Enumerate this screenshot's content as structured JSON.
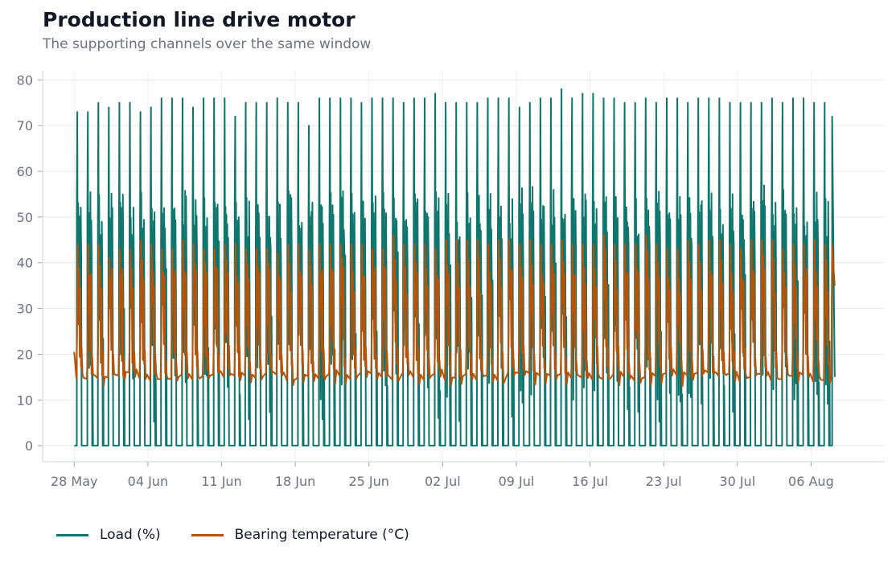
{
  "header": {
    "title": "Production line drive motor",
    "subtitle": "The supporting channels over the same window"
  },
  "chart_data": {
    "type": "line",
    "title": "Production line drive motor",
    "subtitle": "The supporting channels over the same window",
    "xlabel": "",
    "ylabel": "",
    "x_range": [
      "2024-05-25",
      "2024-08-13"
    ],
    "data_x_range": [
      "2024-05-28",
      "2024-08-08"
    ],
    "ylim": [
      -3.5,
      82
    ],
    "y_ticks": [
      0,
      10,
      20,
      30,
      40,
      50,
      60,
      70,
      80
    ],
    "x_tick_labels": [
      "28 May",
      "04 Jun",
      "11 Jun",
      "18 Jun",
      "25 Jun",
      "02 Jul",
      "09 Jul",
      "16 Jul",
      "23 Jul",
      "30 Jul",
      "06 Aug"
    ],
    "x_tick_dates": [
      "2024-05-28",
      "2024-06-04",
      "2024-06-11",
      "2024-06-18",
      "2024-06-25",
      "2024-07-02",
      "2024-07-09",
      "2024-07-16",
      "2024-07-23",
      "2024-07-30",
      "2024-08-06"
    ],
    "grid": true,
    "legend_position": "bottom-left",
    "cycle_hours": 12,
    "series": [
      {
        "name": "Load (%)",
        "color": "#0f766e",
        "pattern": "daily on/off duty cycle: 0 when idle, 45–78 peaks during shifts",
        "peak_values": [
          73,
          75,
          74,
          75,
          73,
          74,
          76,
          76,
          74,
          76,
          76,
          72,
          75,
          75,
          76,
          75,
          70,
          76,
          76,
          76,
          75,
          76,
          76,
          75,
          76,
          77,
          75,
          75,
          75,
          76,
          76,
          74,
          75,
          76,
          78,
          76,
          77,
          76,
          76,
          75,
          76,
          75,
          76,
          75,
          76,
          76,
          75,
          75,
          75,
          76,
          75,
          76,
          75,
          75
        ],
        "range": [
          0,
          78
        ]
      },
      {
        "name": "Bearing temperature (°C)",
        "color": "#b45309",
        "pattern": "follows load with lag: ~14–16 °C baseline, 40–46 °C peaks",
        "peak_values": [
          44,
          44,
          41,
          43,
          45,
          44,
          43,
          45,
          44,
          43,
          44,
          44,
          43,
          43,
          42,
          44,
          43,
          44,
          44,
          44,
          44,
          43,
          46,
          44,
          44,
          43,
          45,
          45,
          45,
          44,
          45,
          44,
          45,
          44,
          45,
          44,
          44,
          46,
          44,
          44,
          46,
          44,
          43,
          45,
          44,
          45,
          44,
          43,
          45,
          45,
          43,
          44,
          45,
          44
        ],
        "range": [
          10,
          46
        ]
      }
    ]
  },
  "legend": {
    "items": [
      {
        "label": "Load (%)",
        "color": "#0f766e"
      },
      {
        "label": "Bearing temperature (°C)",
        "color": "#b45309"
      }
    ]
  }
}
